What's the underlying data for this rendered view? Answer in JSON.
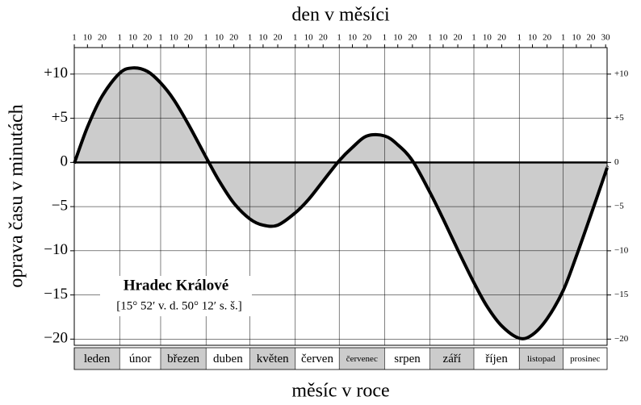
{
  "chart_data": {
    "type": "area-line",
    "title": "den v měsíci",
    "x_label": "měsíc v roce",
    "y_label": "oprava času v minutách",
    "annotation": {
      "title": "Hradec Králové",
      "text": "[15° 52′ v. d.  50° 12′ s. š.]"
    },
    "categories": [
      "leden",
      "únor",
      "březen",
      "duben",
      "květen",
      "červen",
      "červenec",
      "srpen",
      "září",
      "říjen",
      "listopad",
      "prosinec"
    ],
    "x": [
      1,
      10,
      20,
      32,
      41,
      51,
      60,
      69,
      79,
      91,
      100,
      110,
      121,
      130,
      140,
      152,
      161,
      171,
      182,
      191,
      201,
      213,
      222,
      232,
      244,
      253,
      263,
      274,
      283,
      293,
      305,
      314,
      324,
      335,
      344,
      354,
      364,
      365
    ],
    "values": [
      -0.1,
      4.0,
      7.5,
      10.1,
      10.7,
      10.3,
      9.0,
      7.1,
      4.3,
      0.6,
      -2.1,
      -4.6,
      -6.4,
      -7.1,
      -7.1,
      -5.7,
      -4.2,
      -2.1,
      0.2,
      1.7,
      3.0,
      3.0,
      2.0,
      0.2,
      -3.4,
      -6.4,
      -9.9,
      -13.6,
      -16.3,
      -18.5,
      -19.9,
      -19.5,
      -17.7,
      -14.5,
      -10.6,
      -5.9,
      -1.1,
      -0.6
    ],
    "color": "#000000",
    "fill_color": "#cccccc",
    "xlim": [
      1,
      365
    ],
    "ylim": [
      -20.7,
      13
    ],
    "yticks": [
      {
        "value": 10,
        "label": "+10"
      },
      {
        "value": 5,
        "label": "+5"
      },
      0,
      {
        "value": -5,
        "label": "−5"
      },
      {
        "value": -10,
        "label": "−10"
      },
      {
        "value": -15,
        "label": "−15"
      },
      {
        "value": -20,
        "label": "−20"
      }
    ],
    "x2ticks": [
      {
        "value": 1,
        "label": "1"
      },
      {
        "value": 10,
        "label": "10"
      },
      {
        "value": 20,
        "label": "20"
      },
      {
        "value": 32,
        "label": "1"
      },
      {
        "value": 41,
        "label": "10"
      },
      {
        "value": 51,
        "label": "20"
      },
      {
        "value": 60,
        "label": "1"
      },
      {
        "value": 69,
        "label": "10"
      },
      {
        "value": 79,
        "label": "20"
      },
      {
        "value": 91,
        "label": "1"
      },
      {
        "value": 100,
        "label": "10"
      },
      {
        "value": 110,
        "label": "20"
      },
      {
        "value": 121,
        "label": "1"
      },
      {
        "value": 130,
        "label": "10"
      },
      {
        "value": 140,
        "label": "20"
      },
      {
        "value": 152,
        "label": "1"
      },
      {
        "value": 161,
        "label": "10"
      },
      {
        "value": 171,
        "label": "20"
      },
      {
        "value": 182,
        "label": "1"
      },
      {
        "value": 191,
        "label": "10"
      },
      {
        "value": 201,
        "label": "20"
      },
      {
        "value": 213,
        "label": "1"
      },
      {
        "value": 222,
        "label": "10"
      },
      {
        "value": 232,
        "label": "20"
      },
      {
        "value": 244,
        "label": "1"
      },
      {
        "value": 253,
        "label": "10"
      },
      {
        "value": 263,
        "label": "20"
      },
      {
        "value": 274,
        "label": "1"
      },
      {
        "value": 283,
        "label": "10"
      },
      {
        "value": 293,
        "label": "20"
      },
      {
        "value": 305,
        "label": "1"
      },
      {
        "value": 314,
        "label": "10"
      },
      {
        "value": 324,
        "label": "20"
      },
      {
        "value": 335,
        "label": "1"
      },
      {
        "value": 344,
        "label": "10"
      },
      {
        "value": 354,
        "label": "20"
      },
      {
        "value": 364,
        "label": "30"
      }
    ],
    "grid": true
  }
}
